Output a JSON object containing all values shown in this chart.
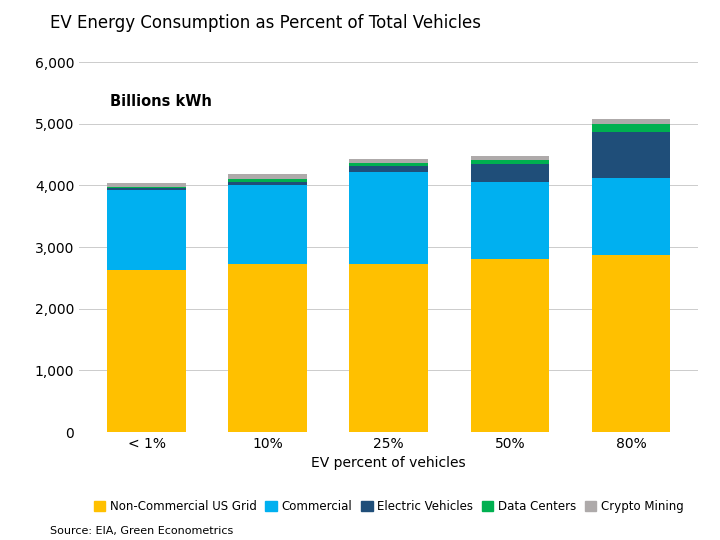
{
  "title": "EV Energy Consumption as Percent of Total Vehicles",
  "categories": [
    "< 1%",
    "10%",
    "25%",
    "50%",
    "80%"
  ],
  "xlabel": "EV percent of vehicles",
  "ylabel_annotation": "Billions kWh",
  "source": "Source: EIA, Green Econometrics",
  "ylim": [
    0,
    6000
  ],
  "yticks": [
    0,
    1000,
    2000,
    3000,
    4000,
    5000,
    6000
  ],
  "series": {
    "Non-Commercial US Grid": {
      "values": [
        2620,
        2720,
        2720,
        2800,
        2870
      ],
      "color": "#FFC000"
    },
    "Commercial": {
      "values": [
        1310,
        1290,
        1500,
        1250,
        1250
      ],
      "color": "#00B0F0"
    },
    "Electric Vehicles": {
      "values": [
        20,
        40,
        100,
        290,
        750
      ],
      "color": "#1F4E79"
    },
    "Data Centers": {
      "values": [
        30,
        55,
        50,
        65,
        120
      ],
      "color": "#00B050"
    },
    "Crypto Mining": {
      "values": [
        60,
        75,
        65,
        65,
        95
      ],
      "color": "#AEAAAA"
    }
  },
  "legend_order": [
    "Non-Commercial US Grid",
    "Commercial",
    "Electric Vehicles",
    "Data Centers",
    "Crypto Mining"
  ],
  "background_color": "#FFFFFF",
  "title_fontsize": 12,
  "axis_fontsize": 10,
  "legend_fontsize": 8.5,
  "bar_width": 0.65
}
